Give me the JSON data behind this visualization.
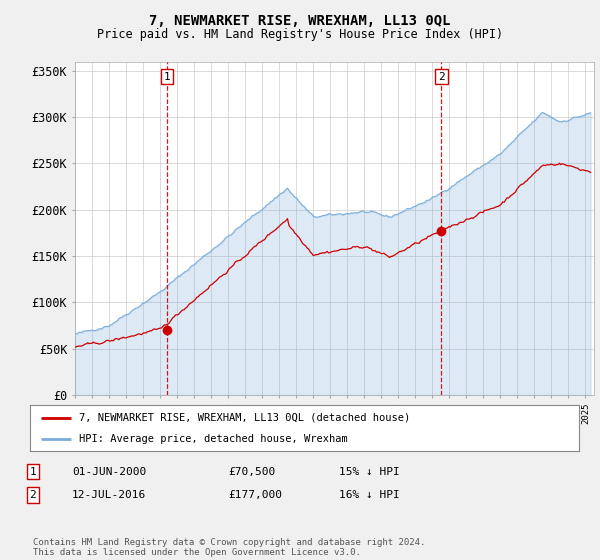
{
  "title": "7, NEWMARKET RISE, WREXHAM, LL13 0QL",
  "subtitle": "Price paid vs. HM Land Registry's House Price Index (HPI)",
  "ylim": [
    0,
    360000
  ],
  "yticks": [
    0,
    50000,
    100000,
    150000,
    200000,
    250000,
    300000,
    350000
  ],
  "ytick_labels": [
    "£0",
    "£50K",
    "£100K",
    "£150K",
    "£200K",
    "£250K",
    "£300K",
    "£350K"
  ],
  "sale1_date_x": 2000.42,
  "sale1_price": 70500,
  "sale1_label": "01-JUN-2000",
  "sale1_price_label": "£70,500",
  "sale1_hpi_label": "15% ↓ HPI",
  "sale2_date_x": 2016.53,
  "sale2_price": 177000,
  "sale2_label": "12-JUL-2016",
  "sale2_price_label": "£177,000",
  "sale2_hpi_label": "16% ↓ HPI",
  "red_line_color": "#cc0000",
  "blue_line_color": "#7aaddc",
  "blue_fill_color": "#dce9f5",
  "vline_color": "#cc0000",
  "background_color": "#f0f0f0",
  "plot_bg_color": "#ffffff",
  "legend_label_red": "7, NEWMARKET RISE, WREXHAM, LL13 0QL (detached house)",
  "legend_label_blue": "HPI: Average price, detached house, Wrexham",
  "footer": "Contains HM Land Registry data © Crown copyright and database right 2024.\nThis data is licensed under the Open Government Licence v3.0.",
  "xmin": 1995.0,
  "xmax": 2025.5
}
